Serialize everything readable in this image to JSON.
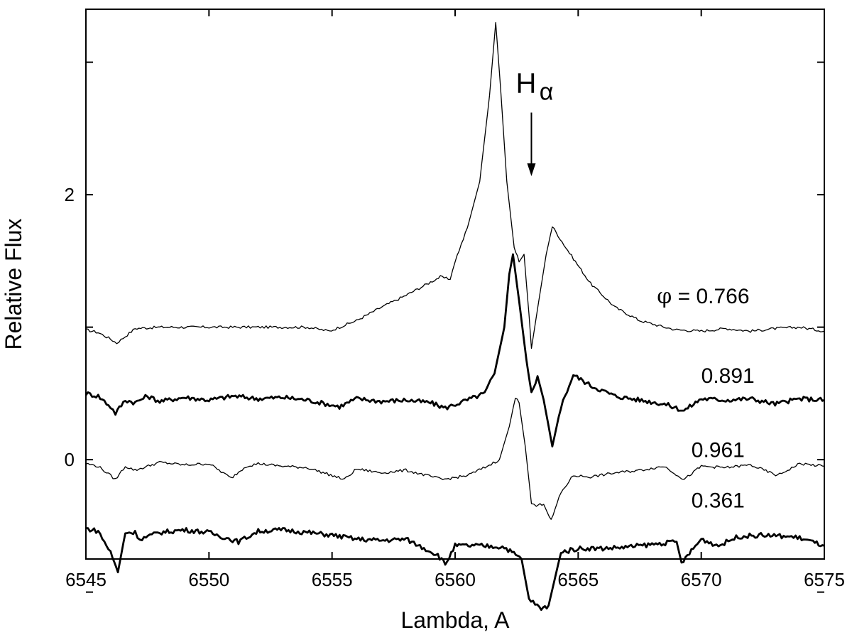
{
  "chart_data": {
    "type": "line",
    "title": "",
    "xlabel": "Lambda, A",
    "ylabel": "Relative Flux",
    "xlim": [
      6545,
      6575
    ],
    "ylim": [
      -0.75,
      3.4
    ],
    "x_ticks": [
      6545,
      6550,
      6555,
      6560,
      6565,
      6570,
      6575
    ],
    "x_tick_labels": [
      "6545",
      "6550",
      "6555",
      "6560",
      "6565",
      "6570",
      "6575"
    ],
    "y_ticks": [
      -1,
      0,
      1,
      2,
      3
    ],
    "y_tick_labels": [
      "",
      "0",
      "",
      "2",
      ""
    ],
    "grid": false,
    "legend": "none",
    "annotation": {
      "label_main": "H",
      "label_sub": "α",
      "arrow_x": 6563.1,
      "arrow_y_top": 2.62,
      "arrow_y_bottom": 2.14
    },
    "series": [
      {
        "name": "φ = 0.766",
        "label_prefix": "φ",
        "label_value": "= 0.766",
        "style": "thin",
        "points": [
          [
            6545,
            0.98
          ],
          [
            6545.5,
            0.96
          ],
          [
            6546.0,
            0.91
          ],
          [
            6546.25,
            0.88
          ],
          [
            6546.6,
            0.93
          ],
          [
            6547.0,
            0.99
          ],
          [
            6548,
            1.0
          ],
          [
            6550,
            1.0
          ],
          [
            6552,
            1.0
          ],
          [
            6554,
            1.0
          ],
          [
            6554.9,
            0.97
          ],
          [
            6555.3,
            1.0
          ],
          [
            6556,
            1.05
          ],
          [
            6557,
            1.15
          ],
          [
            6558,
            1.24
          ],
          [
            6559,
            1.34
          ],
          [
            6559.4,
            1.38
          ],
          [
            6559.8,
            1.36
          ],
          [
            6560.0,
            1.5
          ],
          [
            6560.5,
            1.75
          ],
          [
            6561.0,
            2.1
          ],
          [
            6561.4,
            2.75
          ],
          [
            6561.65,
            3.3
          ],
          [
            6561.85,
            2.8
          ],
          [
            6562.1,
            2.1
          ],
          [
            6562.4,
            1.6
          ],
          [
            6562.6,
            1.5
          ],
          [
            6562.8,
            1.55
          ],
          [
            6563.0,
            1.1
          ],
          [
            6563.1,
            0.84
          ],
          [
            6563.4,
            1.2
          ],
          [
            6563.7,
            1.55
          ],
          [
            6563.95,
            1.76
          ],
          [
            6564.5,
            1.6
          ],
          [
            6565.5,
            1.33
          ],
          [
            6566.5,
            1.15
          ],
          [
            6567.5,
            1.05
          ],
          [
            6568.5,
            1.0
          ],
          [
            6569,
            0.98
          ],
          [
            6570,
            0.97
          ],
          [
            6571,
            0.99
          ],
          [
            6572,
            0.97
          ],
          [
            6573,
            0.99
          ],
          [
            6574,
            1.0
          ],
          [
            6575,
            0.97
          ]
        ]
      },
      {
        "name": "0.891",
        "style": "thick",
        "points": [
          [
            6545,
            0.5
          ],
          [
            6545.5,
            0.48
          ],
          [
            6546.0,
            0.4
          ],
          [
            6546.2,
            0.35
          ],
          [
            6546.6,
            0.45
          ],
          [
            6547,
            0.43
          ],
          [
            6547.5,
            0.48
          ],
          [
            6548,
            0.44
          ],
          [
            6549,
            0.47
          ],
          [
            6550,
            0.45
          ],
          [
            6551,
            0.48
          ],
          [
            6552,
            0.46
          ],
          [
            6553,
            0.47
          ],
          [
            6554,
            0.45
          ],
          [
            6555.3,
            0.4
          ],
          [
            6556,
            0.46
          ],
          [
            6557,
            0.44
          ],
          [
            6558,
            0.45
          ],
          [
            6559,
            0.43
          ],
          [
            6559.6,
            0.39
          ],
          [
            6560.5,
            0.45
          ],
          [
            6561.2,
            0.5
          ],
          [
            6561.6,
            0.65
          ],
          [
            6562.0,
            1.0
          ],
          [
            6562.2,
            1.4
          ],
          [
            6562.35,
            1.55
          ],
          [
            6562.6,
            1.2
          ],
          [
            6562.9,
            0.75
          ],
          [
            6563.1,
            0.5
          ],
          [
            6563.35,
            0.63
          ],
          [
            6563.6,
            0.45
          ],
          [
            6563.95,
            0.1
          ],
          [
            6564.3,
            0.4
          ],
          [
            6564.8,
            0.64
          ],
          [
            6565.5,
            0.56
          ],
          [
            6566.5,
            0.48
          ],
          [
            6567.5,
            0.45
          ],
          [
            6568.5,
            0.42
          ],
          [
            6569.3,
            0.37
          ],
          [
            6570,
            0.46
          ],
          [
            6571,
            0.45
          ],
          [
            6572,
            0.46
          ],
          [
            6573,
            0.42
          ],
          [
            6574,
            0.46
          ],
          [
            6575,
            0.45
          ]
        ]
      },
      {
        "name": "0.961",
        "style": "thin",
        "points": [
          [
            6545,
            -0.03
          ],
          [
            6545.5,
            -0.05
          ],
          [
            6546.0,
            -0.12
          ],
          [
            6546.2,
            -0.15
          ],
          [
            6546.6,
            -0.05
          ],
          [
            6547,
            -0.08
          ],
          [
            6548,
            -0.02
          ],
          [
            6549,
            -0.04
          ],
          [
            6550,
            -0.03
          ],
          [
            6550.9,
            -0.14
          ],
          [
            6551.5,
            -0.05
          ],
          [
            6552,
            -0.03
          ],
          [
            6553,
            -0.05
          ],
          [
            6554,
            -0.06
          ],
          [
            6555.5,
            -0.15
          ],
          [
            6556,
            -0.07
          ],
          [
            6557,
            -0.1
          ],
          [
            6558,
            -0.08
          ],
          [
            6559.5,
            -0.15
          ],
          [
            6560.5,
            -0.12
          ],
          [
            6561.3,
            -0.05
          ],
          [
            6561.8,
            0.0
          ],
          [
            6562.2,
            0.25
          ],
          [
            6562.45,
            0.47
          ],
          [
            6562.6,
            0.43
          ],
          [
            6562.85,
            0.1
          ],
          [
            6563.1,
            -0.33
          ],
          [
            6563.3,
            -0.35
          ],
          [
            6563.6,
            -0.33
          ],
          [
            6563.9,
            -0.46
          ],
          [
            6564.3,
            -0.25
          ],
          [
            6564.8,
            -0.12
          ],
          [
            6565.5,
            -0.13
          ],
          [
            6566.5,
            -0.1
          ],
          [
            6567.5,
            -0.08
          ],
          [
            6568.5,
            -0.05
          ],
          [
            6569.3,
            -0.15
          ],
          [
            6570,
            -0.05
          ],
          [
            6571,
            -0.06
          ],
          [
            6572,
            -0.04
          ],
          [
            6573.1,
            -0.12
          ],
          [
            6574,
            -0.03
          ],
          [
            6575,
            -0.05
          ]
        ]
      },
      {
        "name": "0.361",
        "style": "thick",
        "points": [
          [
            6545,
            -0.52
          ],
          [
            6545.5,
            -0.54
          ],
          [
            6546.0,
            -0.7
          ],
          [
            6546.3,
            -0.85
          ],
          [
            6546.6,
            -0.55
          ],
          [
            6547,
            -0.55
          ],
          [
            6547.2,
            -0.6
          ],
          [
            6548,
            -0.55
          ],
          [
            6549,
            -0.53
          ],
          [
            6550,
            -0.55
          ],
          [
            6551.2,
            -0.62
          ],
          [
            6552,
            -0.54
          ],
          [
            6553,
            -0.53
          ],
          [
            6554,
            -0.55
          ],
          [
            6555,
            -0.57
          ],
          [
            6556,
            -0.6
          ],
          [
            6557,
            -0.61
          ],
          [
            6558,
            -0.6
          ],
          [
            6559.3,
            -0.72
          ],
          [
            6559.6,
            -0.79
          ],
          [
            6560,
            -0.65
          ],
          [
            6561,
            -0.65
          ],
          [
            6562,
            -0.66
          ],
          [
            6562.7,
            -0.75
          ],
          [
            6563.0,
            -1.05
          ],
          [
            6563.5,
            -1.13
          ],
          [
            6563.8,
            -1.1
          ],
          [
            6564.3,
            -0.7
          ],
          [
            6565,
            -0.67
          ],
          [
            6566,
            -0.67
          ],
          [
            6567,
            -0.66
          ],
          [
            6568,
            -0.64
          ],
          [
            6569,
            -0.62
          ],
          [
            6569.2,
            -0.78
          ],
          [
            6570,
            -0.6
          ],
          [
            6570.7,
            -0.65
          ],
          [
            6571.5,
            -0.58
          ],
          [
            6572.5,
            -0.57
          ],
          [
            6573.5,
            -0.58
          ],
          [
            6574,
            -0.59
          ],
          [
            6575,
            -0.65
          ]
        ]
      }
    ]
  }
}
